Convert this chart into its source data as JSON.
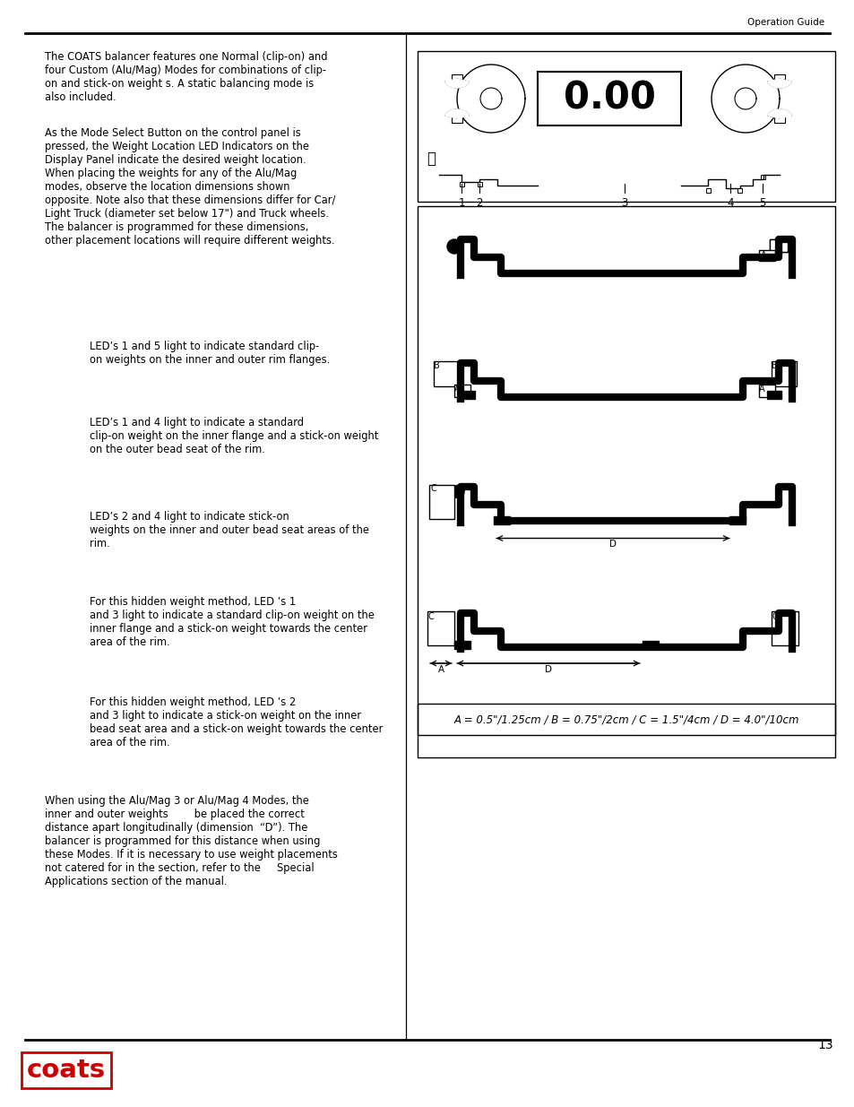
{
  "page_header": "Operation Guide",
  "page_number": "13",
  "bg_color": "#ffffff",
  "red_color": "#cc0000",
  "para1": "The COATS balancer features one Normal (clip-on) and\nfour Custom (Alu/Mag) Modes for combinations of clip-\non and stick-on weight s. A static balancing mode is\nalso included.",
  "para2": "As the Mode Select Button on the control panel is\npressed, the Weight Location LED Indicators on the\nDisplay Panel indicate the desired weight location.\nWhen placing the weights for any of the Alu/Mag\nmodes, observe the location dimensions shown\nopposite. Note also that these dimensions differ for Car/\nLight Truck (diameter set below 17\") and Truck wheels.\nThe balancer is programmed for these dimensions,\nother placement locations will require different weights.",
  "led1_text": "LED’s 1 and 5 light to indicate standard clip-\non weights on the inner and outer rim flanges.",
  "led2_text": "LED’s 1 and 4 light to indicate a standard\nclip-on weight on the inner flange and a stick-on weight\non the outer bead seat of the rim.",
  "led3_text": "LED’s 2 and 4 light to indicate stick-on\nweights on the inner and outer bead seat areas of the\nrim.",
  "led4_text": "For this hidden weight method, LED ’s 1\nand 3 light to indicate a standard clip-on weight on the\ninner flange and a stick-on weight towards the center\narea of the rim.",
  "led5_text": "For this hidden weight method, LED ’s 2\nand 3 light to indicate a stick-on weight on the inner\nbead seat area and a stick-on weight towards the center\narea of the rim.",
  "para_final": "When using the Alu/Mag 3 or Alu/Mag 4 Modes, the\ninner and outer weights        be placed the correct\ndistance apart longitudinally (dimension  “D”). The\nbalancer is programmed for this distance when using\nthese Modes. If it is necessary to use weight placements\nnot catered for in the section, refer to the     Special\nApplications section of the manual.",
  "dimensions_caption": "A = 0.5\"/1.25cm / B = 0.75\"/2cm / C = 1.5\"/4cm / D = 4.0\"/10cm"
}
